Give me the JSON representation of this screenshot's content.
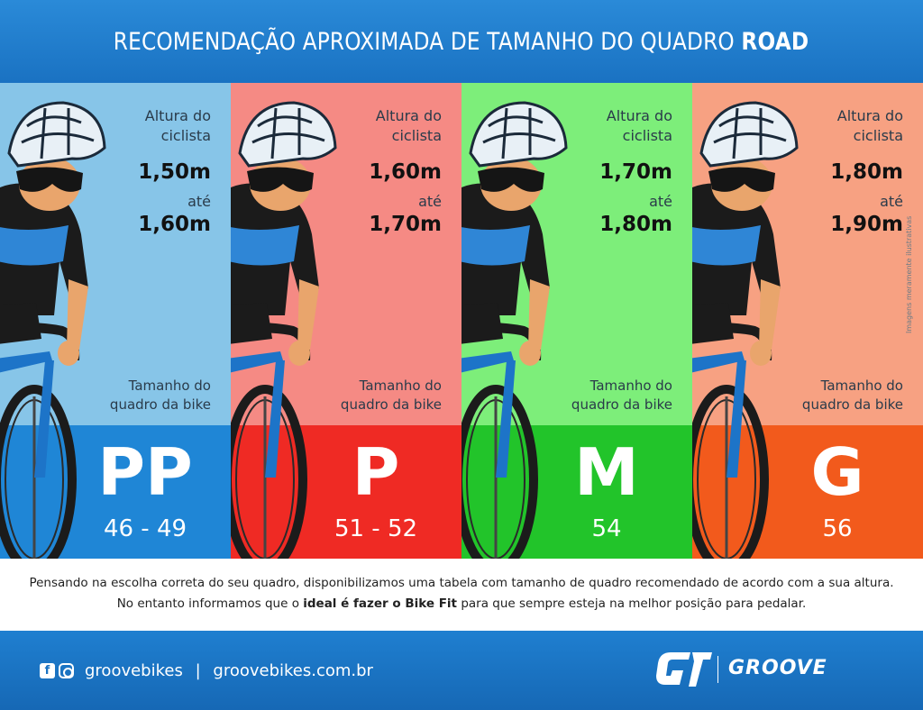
{
  "header": {
    "title_main": "RECOMENDAÇÃO APROXIMADA DE TAMANHO DO QUADRO",
    "title_bold": "ROAD"
  },
  "panels": [
    {
      "height_label_1": "Altura do",
      "height_label_2": "ciclista",
      "from": "1,50m",
      "ate": "até",
      "to": "1,60m",
      "frame_label_1": "Tamanho do",
      "frame_label_2": "quadro da bike",
      "size": "PP",
      "range": "46 - 49",
      "upper_color": "#87c5e8",
      "lower_color": "#1f86d6"
    },
    {
      "height_label_1": "Altura do",
      "height_label_2": "ciclista",
      "from": "1,60m",
      "ate": "até",
      "to": "1,70m",
      "frame_label_1": "Tamanho do",
      "frame_label_2": "quadro da bike",
      "size": "P",
      "range": "51 - 52",
      "upper_color": "#f58a84",
      "lower_color": "#ef2a24"
    },
    {
      "height_label_1": "Altura do",
      "height_label_2": "ciclista",
      "from": "1,70m",
      "ate": "até",
      "to": "1,80m",
      "frame_label_1": "Tamanho do",
      "frame_label_2": "quadro da bike",
      "size": "M",
      "range": "54",
      "upper_color": "#7dee7a",
      "lower_color": "#22c42a"
    },
    {
      "height_label_1": "Altura do",
      "height_label_2": "ciclista",
      "from": "1,80m",
      "ate": "até",
      "to": "1,90m",
      "frame_label_1": "Tamanho do",
      "frame_label_2": "quadro da bike",
      "size": "G",
      "range": "56",
      "upper_color": "#f7a182",
      "lower_color": "#f25a1c"
    }
  ],
  "side_note": "Imagens meramente ilustrativas",
  "info": {
    "line1": "Pensando na escolha correta do seu quadro, disponibilizamos uma tabela com tamanho de quadro recomendado de acordo com a sua altura.",
    "line2_before": "No entanto informamos que o",
    "line2_bold": "ideal é fazer o Bike Fit",
    "line2_after": "para que sempre esteja na melhor posição para pedalar."
  },
  "footer": {
    "icons": [
      "facebook-icon",
      "instagram-icon"
    ],
    "social_handle": "groovebikes",
    "separator": "|",
    "website": "groovebikes.com.br",
    "brand": "GROOVE"
  }
}
